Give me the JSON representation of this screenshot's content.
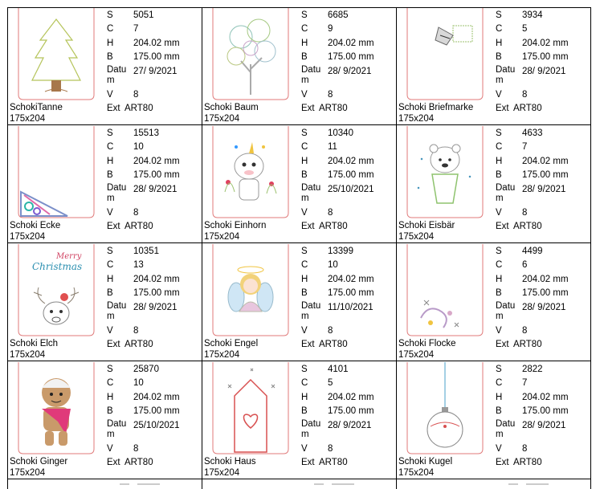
{
  "labels": {
    "s": "S",
    "c": "C",
    "h": "H",
    "b": "B",
    "datum": "Datum",
    "v": "V",
    "ext": "Ext"
  },
  "cells": [
    {
      "name": "SchokiTanne",
      "size": "175x204",
      "s": "5051",
      "c": "7",
      "h": "204.02 mm",
      "b": "175.00 mm",
      "datum": "27/ 9/2021",
      "v": "8",
      "ext": "ART80",
      "motif": "tree-motif"
    },
    {
      "name": "Schoki Baum",
      "size": "175x204",
      "s": "6685",
      "c": "9",
      "h": "204.02 mm",
      "b": "175.00 mm",
      "datum": "28/ 9/2021",
      "v": "8",
      "ext": "ART80",
      "motif": "swirl-tree-motif"
    },
    {
      "name": "Schoki Briefmarke",
      "size": "175x204",
      "s": "3934",
      "c": "5",
      "h": "204.02 mm",
      "b": "175.00 mm",
      "datum": "28/ 9/2021",
      "v": "8",
      "ext": "ART80",
      "motif": "stamp-motif"
    },
    {
      "name": "Schoki Ecke",
      "size": "175x204",
      "s": "15513",
      "c": "10",
      "h": "204.02 mm",
      "b": "175.00 mm",
      "datum": "28/ 9/2021",
      "v": "8",
      "ext": "ART80",
      "motif": "corner-motif"
    },
    {
      "name": "Schoki Einhorn",
      "size": "175x204",
      "s": "10340",
      "c": "11",
      "h": "204.02 mm",
      "b": "175.00 mm",
      "datum": "25/10/2021",
      "v": "8",
      "ext": "ART80",
      "motif": "unicorn-motif"
    },
    {
      "name": "Schoki Eisbär",
      "size": "175x204",
      "s": "4633",
      "c": "7",
      "h": "204.02 mm",
      "b": "175.00 mm",
      "datum": "28/ 9/2021",
      "v": "8",
      "ext": "ART80",
      "motif": "polar-bear-motif"
    },
    {
      "name": "Schoki Elch",
      "size": "175x204",
      "s": "10351",
      "c": "13",
      "h": "204.02 mm",
      "b": "175.00 mm",
      "datum": "28/ 9/2021",
      "v": "8",
      "ext": "ART80",
      "motif": "moose-motif",
      "motif_text": [
        "Merry",
        "Christmas"
      ]
    },
    {
      "name": "Schoki Engel",
      "size": "175x204",
      "s": "13399",
      "c": "10",
      "h": "204.02 mm",
      "b": "175.00 mm",
      "datum": "11/10/2021",
      "v": "8",
      "ext": "ART80",
      "motif": "angel-motif"
    },
    {
      "name": "Schoki Flocke",
      "size": "175x204",
      "s": "4499",
      "c": "6",
      "h": "204.02 mm",
      "b": "175.00 mm",
      "datum": "28/ 9/2021",
      "v": "8",
      "ext": "ART80",
      "motif": "snowflake-motif"
    },
    {
      "name": "Schoki Ginger",
      "size": "175x204",
      "s": "25870",
      "c": "10",
      "h": "204.02 mm",
      "b": "175.00 mm",
      "datum": "25/10/2021",
      "v": "8",
      "ext": "ART80",
      "motif": "gingerbread-motif"
    },
    {
      "name": "Schoki Haus",
      "size": "175x204",
      "s": "4101",
      "c": "5",
      "h": "204.02 mm",
      "b": "175.00 mm",
      "datum": "28/ 9/2021",
      "v": "8",
      "ext": "ART80",
      "motif": "house-heart-motif"
    },
    {
      "name": "Schoki Kugel",
      "size": "175x204",
      "s": "2822",
      "c": "7",
      "h": "204.02 mm",
      "b": "175.00 mm",
      "datum": "28/ 9/2021",
      "v": "8",
      "ext": "ART80",
      "motif": "bauble-motif"
    }
  ],
  "colors": {
    "grid": "#000000",
    "outline": "#e07a7a",
    "text": "#000000"
  }
}
